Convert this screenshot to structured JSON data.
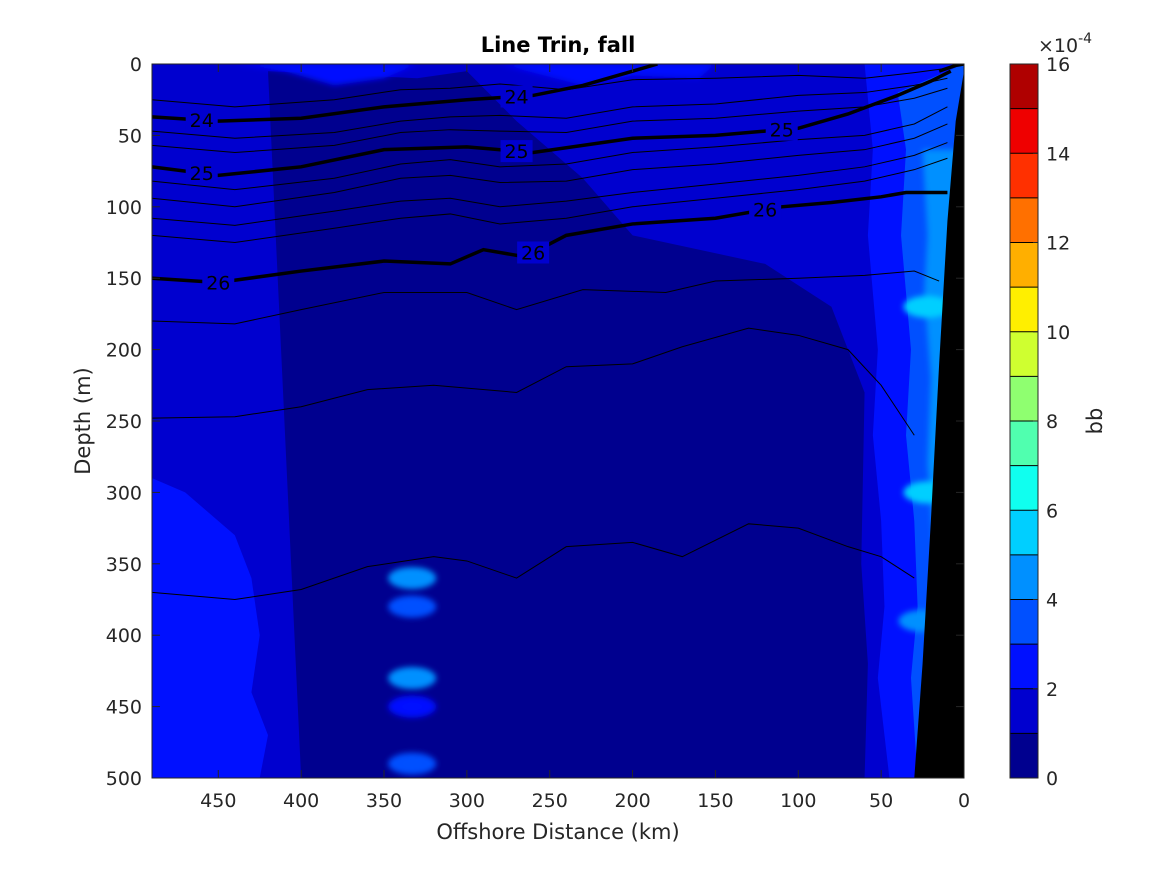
{
  "chart_data": {
    "type": "heatmap",
    "subtype": "filled contour section with density contour overlay",
    "title": "Line Trin, fall",
    "xlabel": "Offshore Distance (km)",
    "ylabel": "Depth (m)",
    "xlim": [
      490,
      0
    ],
    "ylim": [
      500,
      0
    ],
    "x_reversed": true,
    "y_reversed": true,
    "xticks": [
      "450",
      "400",
      "350",
      "300",
      "250",
      "200",
      "150",
      "100",
      "50",
      "0"
    ],
    "yticks": [
      "0",
      "50",
      "100",
      "150",
      "200",
      "250",
      "300",
      "350",
      "400",
      "450",
      "500"
    ],
    "colorbar": {
      "label": "bb",
      "exponent_label": "×10",
      "exponent_power": "-4",
      "ticks": [
        "16",
        "14",
        "12",
        "10",
        "8",
        "6",
        "4",
        "2",
        "0"
      ],
      "range": [
        0,
        16
      ],
      "colormap": "jet",
      "levels": [
        {
          "from": 0,
          "to": 1,
          "color": "#00008f"
        },
        {
          "from": 1,
          "to": 2,
          "color": "#0000cf"
        },
        {
          "from": 2,
          "to": 3,
          "color": "#0010ff"
        },
        {
          "from": 3,
          "to": 4,
          "color": "#0050ff"
        },
        {
          "from": 4,
          "to": 5,
          "color": "#0090ff"
        },
        {
          "from": 5,
          "to": 6,
          "color": "#00cfff"
        },
        {
          "from": 6,
          "to": 7,
          "color": "#10ffef"
        },
        {
          "from": 7,
          "to": 8,
          "color": "#50ffaf"
        },
        {
          "from": 8,
          "to": 9,
          "color": "#8fff70"
        },
        {
          "from": 9,
          "to": 10,
          "color": "#cfff30"
        },
        {
          "from": 10,
          "to": 11,
          "color": "#ffef00"
        },
        {
          "from": 11,
          "to": 12,
          "color": "#ffaf00"
        },
        {
          "from": 12,
          "to": 13,
          "color": "#ff7000"
        },
        {
          "from": 13,
          "to": 14,
          "color": "#ff3000"
        },
        {
          "from": 14,
          "to": 15,
          "color": "#ef0000"
        },
        {
          "from": 15,
          "to": 16,
          "color": "#af0000"
        }
      ]
    },
    "field_summary": {
      "background_level": "1-2",
      "surface_patch_level": "2-3",
      "offshore_deep_level": "2-3",
      "nearshore_band_level": "3-5",
      "nearshore_max_level": "5-6",
      "spots": [
        {
          "x": 333,
          "y": 360,
          "level": "4-5"
        },
        {
          "x": 333,
          "y": 380,
          "level": "3-4"
        },
        {
          "x": 333,
          "y": 430,
          "level": "4-5"
        },
        {
          "x": 333,
          "y": 450,
          "level": "2-3"
        },
        {
          "x": 333,
          "y": 490,
          "level": "3-4"
        },
        {
          "x": 22,
          "y": 170,
          "level": "5-6"
        },
        {
          "x": 22,
          "y": 300,
          "level": "5-6"
        },
        {
          "x": 25,
          "y": 390,
          "level": "4-5"
        }
      ]
    },
    "bold_contours": [
      {
        "label": "24",
        "x": [
          490,
          450,
          400,
          350,
          300,
          260,
          230,
          200,
          185
        ],
        "y": [
          37,
          40,
          38,
          30,
          25,
          22,
          15,
          5,
          0
        ]
      },
      {
        "label": "24",
        "x": [
          15,
          5,
          0
        ],
        "y": [
          5,
          1,
          0
        ]
      },
      {
        "label": "25",
        "x": [
          490,
          450,
          400,
          350,
          300,
          260,
          200,
          150,
          100,
          70,
          40,
          20,
          8
        ],
        "y": [
          72,
          78,
          72,
          60,
          58,
          62,
          52,
          50,
          45,
          35,
          22,
          12,
          5
        ]
      },
      {
        "label": "26",
        "x": [
          490,
          450,
          400,
          350,
          310,
          290,
          265,
          240,
          200,
          150,
          110,
          80,
          50,
          35,
          10
        ],
        "y": [
          150,
          153,
          145,
          138,
          140,
          130,
          135,
          120,
          112,
          108,
          100,
          97,
          93,
          90,
          90
        ]
      }
    ],
    "thin_contours": [
      {
        "x": [
          490,
          440,
          380,
          340,
          310,
          280,
          240,
          200,
          150,
          100,
          60,
          30,
          10
        ],
        "y": [
          25,
          30,
          25,
          18,
          17,
          14,
          18,
          11,
          10,
          8,
          10,
          6,
          3
        ]
      },
      {
        "x": [
          490,
          440,
          380,
          340,
          310,
          280,
          240,
          200,
          150,
          100,
          60,
          30,
          10
        ],
        "y": [
          47,
          52,
          48,
          40,
          37,
          36,
          38,
          30,
          28,
          22,
          20,
          15,
          10
        ]
      },
      {
        "x": [
          490,
          440,
          380,
          340,
          310,
          280,
          240,
          200,
          150,
          100,
          60,
          30,
          10
        ],
        "y": [
          57,
          62,
          57,
          48,
          46,
          47,
          48,
          40,
          38,
          33,
          30,
          24,
          17
        ]
      },
      {
        "x": [
          490,
          440,
          380,
          340,
          310,
          280,
          240,
          200,
          150,
          100,
          60,
          30,
          10
        ],
        "y": [
          82,
          88,
          80,
          70,
          67,
          72,
          70,
          62,
          58,
          53,
          50,
          42,
          30
        ]
      },
      {
        "x": [
          490,
          440,
          380,
          340,
          310,
          280,
          240,
          200,
          150,
          100,
          60,
          30,
          10
        ],
        "y": [
          94,
          100,
          90,
          80,
          78,
          83,
          82,
          74,
          70,
          64,
          60,
          52,
          42
        ]
      },
      {
        "x": [
          490,
          440,
          380,
          340,
          310,
          280,
          240,
          200,
          150,
          100,
          60,
          30,
          10
        ],
        "y": [
          108,
          113,
          103,
          96,
          94,
          100,
          96,
          90,
          84,
          78,
          72,
          64,
          55
        ]
      },
      {
        "x": [
          490,
          440,
          380,
          340,
          310,
          280,
          240,
          200,
          150,
          100,
          60,
          30,
          10
        ],
        "y": [
          120,
          125,
          115,
          108,
          105,
          112,
          108,
          100,
          94,
          88,
          82,
          74,
          66
        ]
      },
      {
        "x": [
          490,
          440,
          400,
          350,
          300,
          270,
          230,
          180,
          150,
          100,
          60,
          30,
          15
        ],
        "y": [
          180,
          182,
          172,
          160,
          160,
          172,
          158,
          160,
          152,
          150,
          148,
          145,
          152
        ]
      },
      {
        "x": [
          490,
          440,
          400,
          360,
          320,
          270,
          240,
          200,
          170,
          130,
          100,
          70,
          50,
          30
        ],
        "y": [
          248,
          247,
          240,
          228,
          225,
          230,
          212,
          210,
          198,
          185,
          190,
          200,
          225,
          260
        ]
      },
      {
        "x": [
          490,
          440,
          400,
          360,
          320,
          300,
          270,
          240,
          200,
          170,
          130,
          100,
          70,
          50,
          30
        ],
        "y": [
          370,
          375,
          368,
          352,
          345,
          348,
          360,
          338,
          335,
          345,
          322,
          325,
          338,
          345,
          360
        ]
      }
    ],
    "topography": {
      "x": [
        30,
        25,
        20,
        15,
        10,
        5,
        0
      ],
      "y": [
        500,
        420,
        320,
        210,
        110,
        40,
        5
      ]
    }
  }
}
